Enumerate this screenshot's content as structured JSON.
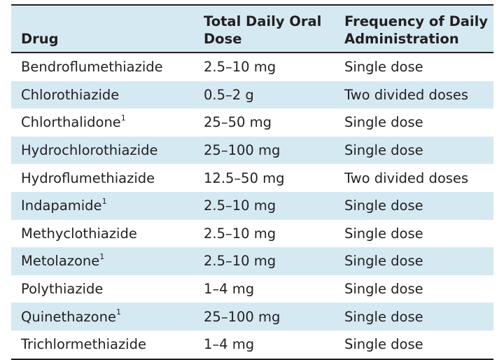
{
  "table": {
    "headers": {
      "drug": "Drug",
      "dose": "Total Daily Oral Dose",
      "frequency": "Frequency of Daily Administration"
    },
    "rows": [
      {
        "drug": "Bendroflumethiazide",
        "note": "",
        "dose": "2.5–10 mg",
        "frequency": "Single dose"
      },
      {
        "drug": "Chlorothiazide",
        "note": "",
        "dose": "0.5–2 g",
        "frequency": "Two divided doses"
      },
      {
        "drug": "Chlorthalidone",
        "note": "1",
        "dose": "25–50 mg",
        "frequency": "Single dose"
      },
      {
        "drug": "Hydrochlorothiazide",
        "note": "",
        "dose": "25–100 mg",
        "frequency": "Single dose"
      },
      {
        "drug": "Hydroflumethiazide",
        "note": "",
        "dose": "12.5–50 mg",
        "frequency": "Two divided doses"
      },
      {
        "drug": "Indapamide",
        "note": "1",
        "dose": "2.5–10 mg",
        "frequency": "Single dose"
      },
      {
        "drug": "Methyclothiazide",
        "note": "",
        "dose": "2.5–10 mg",
        "frequency": "Single dose"
      },
      {
        "drug": "Metolazone",
        "note": "1",
        "dose": "2.5–10 mg",
        "frequency": "Single dose"
      },
      {
        "drug": "Polythiazide",
        "note": "",
        "dose": "1–4 mg",
        "frequency": "Single dose"
      },
      {
        "drug": "Quinethazone",
        "note": "1",
        "dose": "25–100 mg",
        "frequency": "Single dose"
      },
      {
        "drug": "Trichlormethiazide",
        "note": "",
        "dose": "1–4 mg",
        "frequency": "Single dose"
      }
    ]
  },
  "colors": {
    "stripe": "#d5e9f3",
    "text": "#231f20",
    "rule": "#231f20"
  }
}
